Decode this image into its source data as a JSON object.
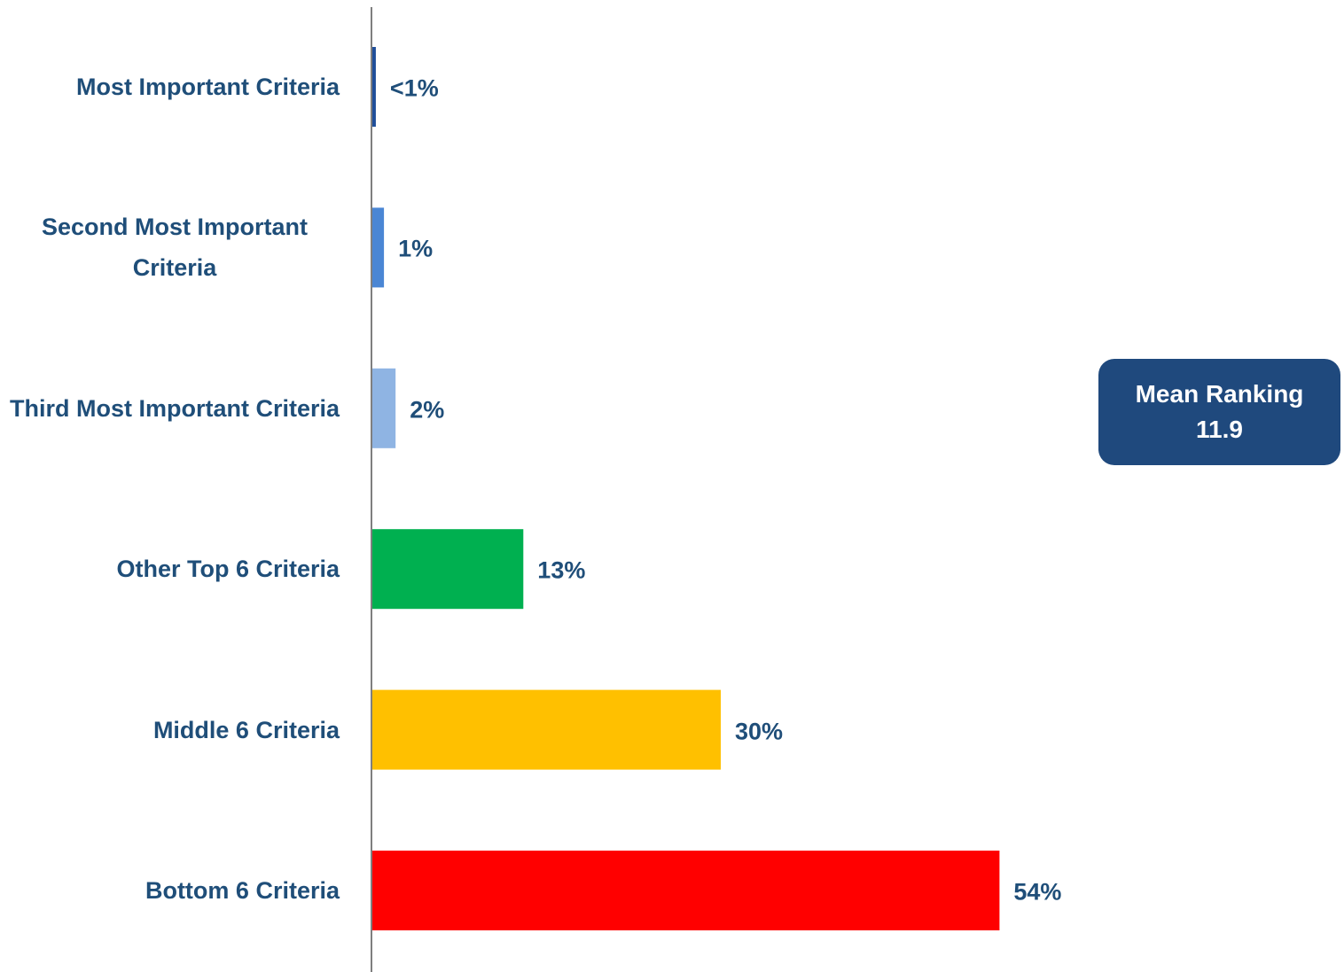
{
  "chart_data": {
    "type": "bar",
    "orientation": "horizontal",
    "categories": [
      "Most Important Criteria",
      "Second Most Important Criteria",
      "Third Most Important Criteria",
      "Other Top 6 Criteria",
      "Middle 6 Criteria",
      "Bottom 6 Criteria"
    ],
    "values": [
      0.3,
      1,
      2,
      13,
      30,
      54
    ],
    "value_labels": [
      "<1%",
      "1%",
      "2%",
      "13%",
      "30%",
      "54%"
    ],
    "colors": [
      "#1f4e9a",
      "#4a86d4",
      "#8fb4e3",
      "#00b050",
      "#ffc000",
      "#ff0000"
    ],
    "xlim": [
      0,
      80
    ],
    "annotation": {
      "label": "Mean Ranking",
      "value": 11.9
    }
  }
}
